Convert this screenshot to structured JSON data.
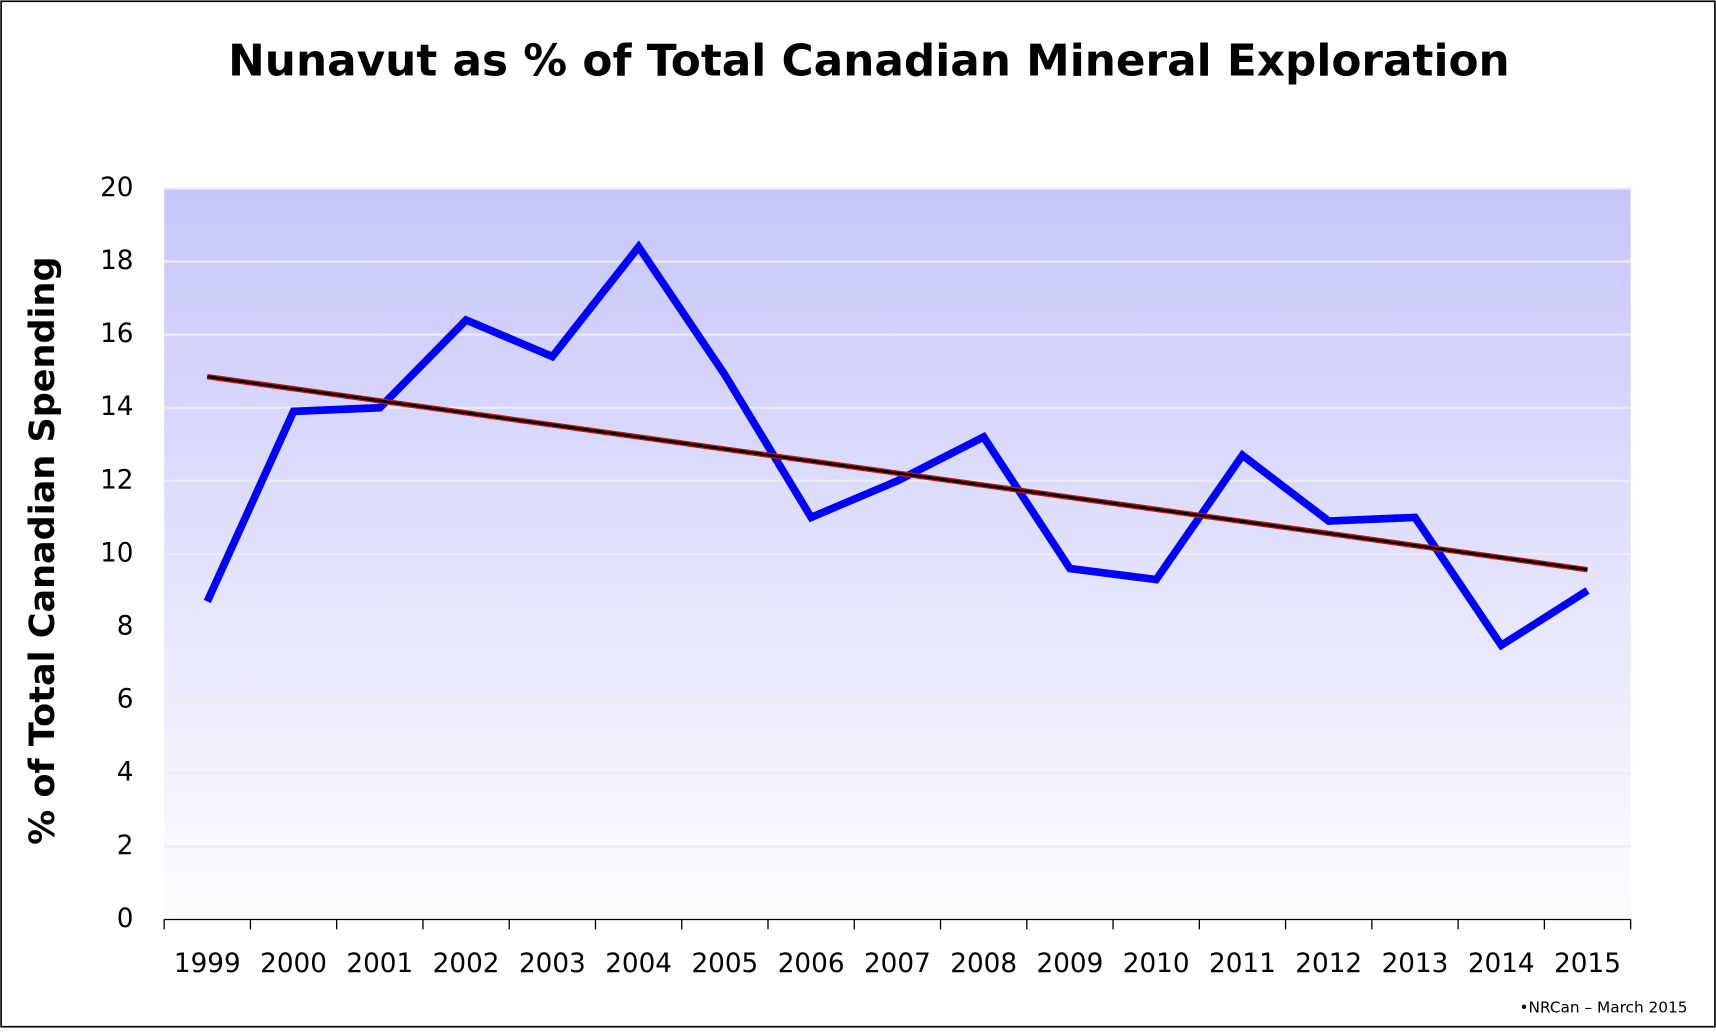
{
  "chart_data": {
    "type": "line",
    "title": "Nunavut as % of Total Canadian Mineral Exploration",
    "y_label": "% of Total Canadian Spending",
    "source": "•NRCan – March 2015",
    "categories": [
      "1999",
      "2000",
      "2001",
      "2002",
      "2003",
      "2004",
      "2005",
      "2006",
      "2007",
      "2008",
      "2009",
      "2010",
      "2011",
      "2012",
      "2013",
      "2014",
      "2015"
    ],
    "series": [
      {
        "color": "#0000ff",
        "values": [
          8.7,
          13.9,
          14.0,
          16.4,
          15.4,
          18.4,
          14.9,
          11.0,
          12.0,
          13.2,
          9.6,
          9.3,
          12.7,
          10.9,
          11.0,
          7.5,
          9.0
        ]
      },
      {
        "color": "#000000",
        "values": [
          14.85,
          14.52,
          14.19,
          13.86,
          13.53,
          13.2,
          12.87,
          12.54,
          12.21,
          11.88,
          11.55,
          11.22,
          10.89,
          10.56,
          10.23,
          9.9,
          9.57
        ]
      }
    ],
    "ylim": [
      0,
      20
    ],
    "yticks": [
      0,
      2,
      4,
      6,
      8,
      10,
      12,
      14,
      16,
      18,
      20
    ],
    "grid": true
  }
}
